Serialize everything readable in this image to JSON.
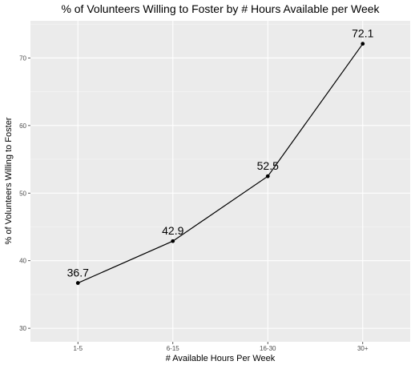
{
  "chart_data": {
    "type": "line",
    "title": "% of Volunteers Willing to Foster by # Hours Available per Week",
    "xlabel": "# Available Hours Per Week",
    "ylabel": "% of Volunteers Willing to Foster",
    "categories": [
      "1-5",
      "6-15",
      "16-30",
      "30+"
    ],
    "values": [
      36.7,
      42.9,
      52.5,
      72.1
    ],
    "data_labels": [
      "36.7",
      "42.9",
      "52.5",
      "72.1"
    ],
    "ylim": [
      28.0,
      75.5
    ],
    "y_ticks": [
      30,
      40,
      50,
      60,
      70
    ],
    "grid": true,
    "legend": "none",
    "colors": {
      "panel": "#ebebeb",
      "grid_major": "#ffffff",
      "grid_minor": "#f5f5f5",
      "line": "#000000",
      "point": "#000000",
      "tick_text": "#4d4d4d"
    }
  }
}
